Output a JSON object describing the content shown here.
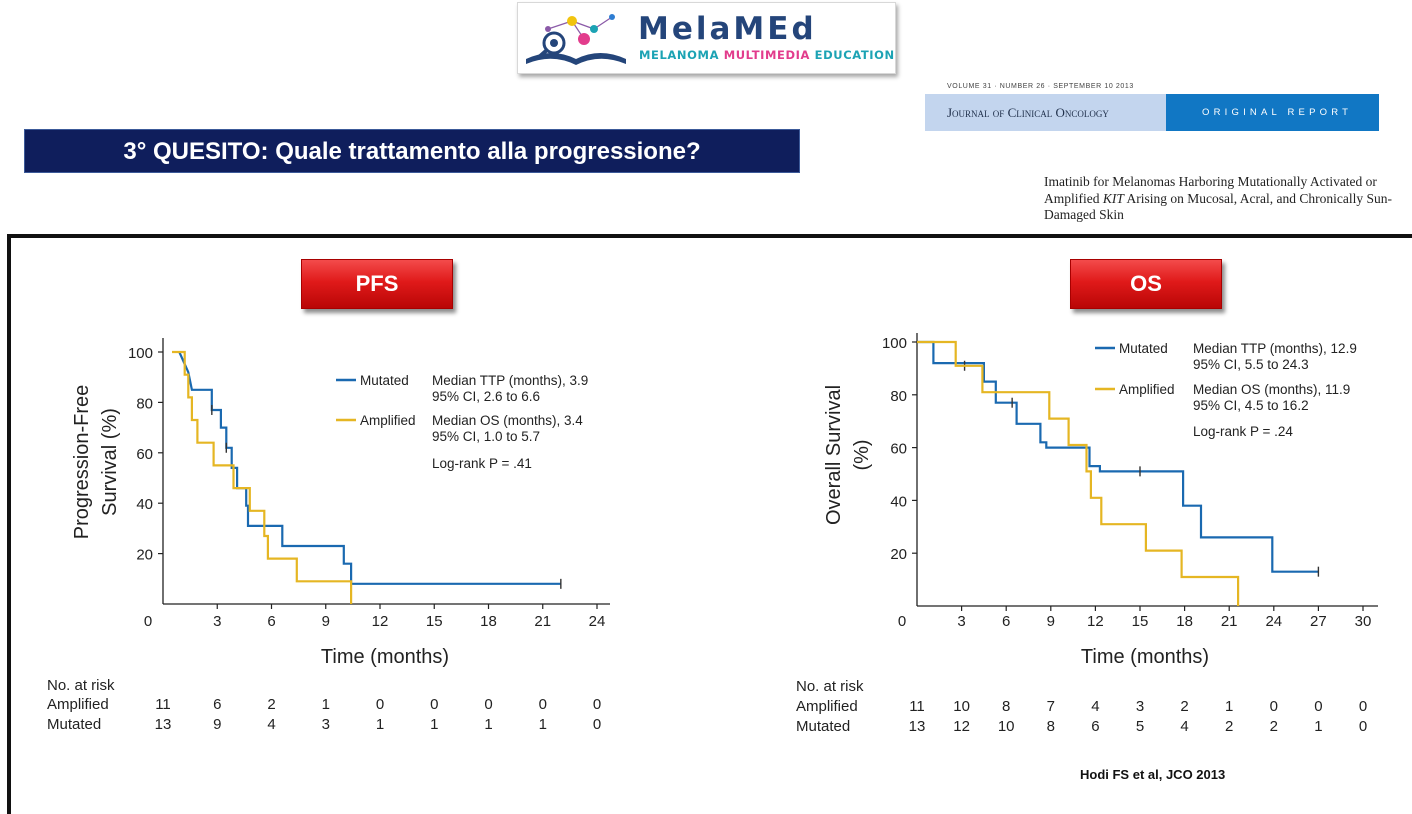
{
  "logo": {
    "title": "MelaMEd",
    "subtitle_part1": "MELANOMA ",
    "subtitle_part2": "MULTIMEDIA",
    "subtitle_part3": " EDUCATION"
  },
  "journal": {
    "volume_line": "VOLUME 31 · NUMBER 26 · SEPTEMBER 10 2013",
    "name": "Journal of Clinical Oncology",
    "section": "ORIGINAL REPORT",
    "article_title_part1": "Imatinib for Melanomas Harboring Mutationally Activated or Amplified ",
    "article_title_kit": "KIT",
    "article_title_part2": " Arising on Mucosal, Acral, and Chronically Sun-Damaged Skin"
  },
  "question": "3° QUESITO: Quale trattamento alla progressione?",
  "reference": "Hodi FS et al, JCO 2013",
  "colors": {
    "mutated": "#1a69b0",
    "amplified": "#e5b623",
    "banner": "#0f1e5c",
    "button": "#e01a1a"
  },
  "chart_data": [
    {
      "type": "line",
      "button_label": "PFS",
      "ylabel_line1": "Progression-Free",
      "ylabel_line2": "Survival (%)",
      "xlabel": "Time (months)",
      "xlim": [
        0,
        24
      ],
      "ylim": [
        0,
        100
      ],
      "xticks": [
        0,
        3,
        6,
        9,
        12,
        15,
        18,
        21,
        24
      ],
      "yticks": [
        20,
        40,
        60,
        80,
        100
      ],
      "series": [
        {
          "name": "Mutated",
          "color": "#1a69b0",
          "points": [
            [
              0.9,
              100
            ],
            [
              1.4,
              92
            ],
            [
              1.6,
              85
            ],
            [
              2.7,
              85
            ],
            [
              2.7,
              77
            ],
            [
              3.2,
              77
            ],
            [
              3.2,
              70
            ],
            [
              3.5,
              70
            ],
            [
              3.5,
              62
            ],
            [
              3.8,
              62
            ],
            [
              3.8,
              54
            ],
            [
              4.1,
              54
            ],
            [
              4.1,
              46
            ],
            [
              4.6,
              46
            ],
            [
              4.6,
              39
            ],
            [
              4.7,
              39
            ],
            [
              4.7,
              31
            ],
            [
              6.6,
              31
            ],
            [
              6.6,
              23
            ],
            [
              10,
              23
            ],
            [
              10,
              16
            ],
            [
              10.4,
              16
            ],
            [
              10.4,
              8
            ],
            [
              22,
              8
            ]
          ],
          "censor": [
            [
              2.7,
              77
            ],
            [
              3.5,
              62
            ],
            [
              22,
              8
            ]
          ]
        },
        {
          "name": "Amplified",
          "color": "#e5b623",
          "points": [
            [
              0.5,
              100
            ],
            [
              1.2,
              100
            ],
            [
              1.2,
              91
            ],
            [
              1.4,
              91
            ],
            [
              1.4,
              82
            ],
            [
              1.6,
              82
            ],
            [
              1.6,
              73
            ],
            [
              1.9,
              73
            ],
            [
              1.9,
              64
            ],
            [
              2.8,
              64
            ],
            [
              2.8,
              55
            ],
            [
              3.9,
              55
            ],
            [
              3.9,
              46
            ],
            [
              4.8,
              46
            ],
            [
              4.8,
              37
            ],
            [
              5.6,
              37
            ],
            [
              5.6,
              27
            ],
            [
              5.8,
              27
            ],
            [
              5.8,
              18
            ],
            [
              7.4,
              18
            ],
            [
              7.4,
              9
            ],
            [
              10.4,
              9
            ],
            [
              10.4,
              0
            ]
          ],
          "censor": []
        }
      ],
      "legend": [
        {
          "series": "Mutated",
          "line1": "Median TTP (months), 3.9",
          "line2": "95% CI, 2.6 to 6.6"
        },
        {
          "series": "Amplified",
          "line1": "Median OS (months), 3.4",
          "line2": "95% CI, 1.0 to 5.7"
        }
      ],
      "logrank": "Log-rank P = .41",
      "risk_table": {
        "header": "No. at risk",
        "rows": [
          {
            "label": "Amplified",
            "values": [
              11,
              6,
              2,
              1,
              0,
              0,
              0,
              0,
              0
            ]
          },
          {
            "label": "Mutated",
            "values": [
              13,
              9,
              4,
              3,
              1,
              1,
              1,
              1,
              0
            ]
          }
        ]
      }
    },
    {
      "type": "line",
      "button_label": "OS",
      "ylabel_line1": "Overall Survival",
      "ylabel_line2": "(%)",
      "xlabel": "Time (months)",
      "xlim": [
        0,
        30
      ],
      "ylim": [
        0,
        100
      ],
      "xticks": [
        0,
        3,
        6,
        9,
        12,
        15,
        18,
        21,
        24,
        27,
        30
      ],
      "yticks": [
        20,
        40,
        60,
        80,
        100
      ],
      "series": [
        {
          "name": "Mutated",
          "color": "#1a69b0",
          "points": [
            [
              0,
              100
            ],
            [
              1.1,
              100
            ],
            [
              1.1,
              92
            ],
            [
              4.5,
              92
            ],
            [
              4.5,
              85
            ],
            [
              5.3,
              85
            ],
            [
              5.3,
              77
            ],
            [
              6.7,
              77
            ],
            [
              6.7,
              69
            ],
            [
              8.3,
              69
            ],
            [
              8.3,
              62
            ],
            [
              8.7,
              62
            ],
            [
              8.7,
              60
            ],
            [
              11.6,
              60
            ],
            [
              11.6,
              53
            ],
            [
              12.3,
              53
            ],
            [
              12.3,
              51
            ],
            [
              17.9,
              51
            ],
            [
              17.9,
              38
            ],
            [
              19.1,
              38
            ],
            [
              19.1,
              26
            ],
            [
              23.9,
              26
            ],
            [
              23.9,
              13
            ],
            [
              27,
              13
            ]
          ],
          "censor": [
            [
              3.2,
              91
            ],
            [
              6.4,
              77
            ],
            [
              15,
              51
            ],
            [
              27,
              13
            ]
          ]
        },
        {
          "name": "Amplified",
          "color": "#e5b623",
          "points": [
            [
              0,
              100
            ],
            [
              2.6,
              100
            ],
            [
              2.6,
              91
            ],
            [
              4.4,
              91
            ],
            [
              4.4,
              81
            ],
            [
              8.9,
              81
            ],
            [
              8.9,
              71
            ],
            [
              10.2,
              71
            ],
            [
              10.2,
              61
            ],
            [
              11.4,
              61
            ],
            [
              11.4,
              51
            ],
            [
              11.7,
              51
            ],
            [
              11.7,
              41
            ],
            [
              12.4,
              41
            ],
            [
              12.4,
              31
            ],
            [
              15.4,
              31
            ],
            [
              15.4,
              21
            ],
            [
              17.8,
              21
            ],
            [
              17.8,
              11
            ],
            [
              21.6,
              11
            ],
            [
              21.6,
              0
            ]
          ],
          "censor": []
        }
      ],
      "legend": [
        {
          "series": "Mutated",
          "line1": "Median TTP (months), 12.9",
          "line2": "95% CI, 5.5 to 24.3"
        },
        {
          "series": "Amplified",
          "line1": "Median OS (months), 11.9",
          "line2": "95% CI, 4.5 to 16.2"
        }
      ],
      "logrank": "Log-rank P = .24",
      "risk_table": {
        "header": "No. at risk",
        "rows": [
          {
            "label": "Amplified",
            "values": [
              11,
              10,
              8,
              7,
              4,
              3,
              2,
              1,
              0,
              0,
              0
            ]
          },
          {
            "label": "Mutated",
            "values": [
              13,
              12,
              10,
              8,
              6,
              5,
              4,
              2,
              2,
              1,
              0
            ]
          }
        ]
      }
    }
  ]
}
